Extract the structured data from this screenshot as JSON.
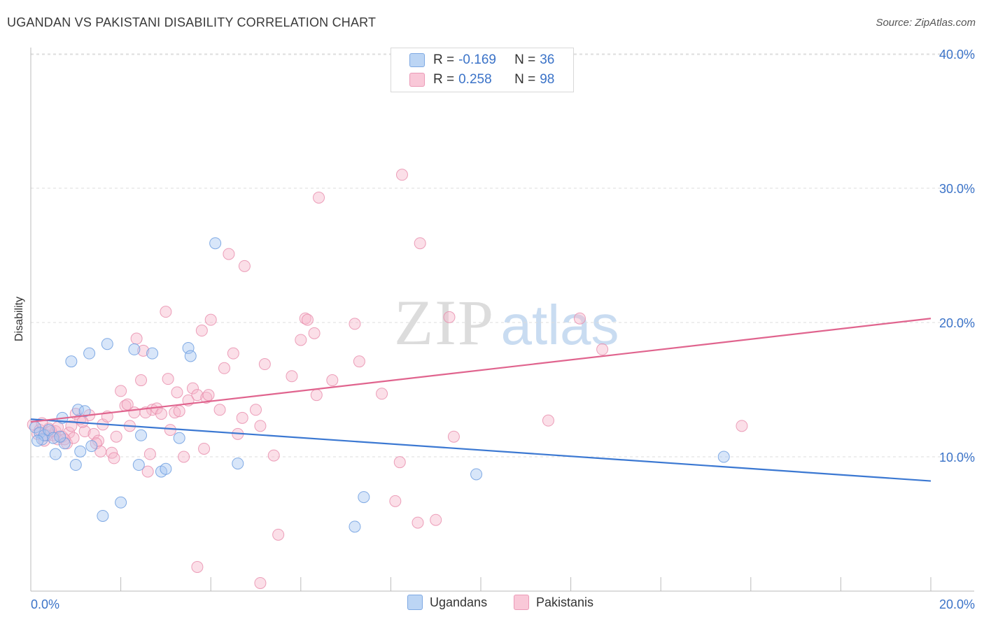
{
  "header": {
    "title": "UGANDAN VS PAKISTANI DISABILITY CORRELATION CHART",
    "source": "Source: ZipAtlas.com"
  },
  "watermark": {
    "zip": "ZIP",
    "atlas": "atlas"
  },
  "legend": {
    "r_label": "R =",
    "n_label": "N =",
    "entries": [
      {
        "name": "Ugandans",
        "r": "-0.169",
        "n": "36",
        "fill": "#a9c8f2",
        "stroke": "#6d9ee0"
      },
      {
        "name": "Pakistanis",
        "r": "0.258",
        "n": "98",
        "fill": "#f7b8cc",
        "stroke": "#e98fae"
      }
    ]
  },
  "chart_data": {
    "type": "scatter",
    "title": "UGANDAN VS PAKISTANI DISABILITY CORRELATION CHART",
    "xlabel": "",
    "ylabel": "Disability",
    "xlim": [
      0,
      20
    ],
    "ylim": [
      0,
      40
    ],
    "x_tick_labels": [
      "0.0%",
      "20.0%"
    ],
    "y_ticks": [
      10,
      20,
      30,
      40
    ],
    "y_tick_labels": [
      "10.0%",
      "20.0%",
      "30.0%",
      "40.0%"
    ],
    "grid": "horizontal-dashed",
    "legend_position": "top-center",
    "series": [
      {
        "name": "Ugandans",
        "color": "#3b78d2",
        "fill": "#a9c8f2",
        "trend": {
          "x": [
            0,
            20
          ],
          "y": [
            12.8,
            8.2
          ]
        },
        "points": [
          [
            0.1,
            12.2
          ],
          [
            0.2,
            11.8
          ],
          [
            0.25,
            11.3
          ],
          [
            0.3,
            11.6
          ],
          [
            0.4,
            12.0
          ],
          [
            0.5,
            11.4
          ],
          [
            0.55,
            10.2
          ],
          [
            0.7,
            12.9
          ],
          [
            0.75,
            11.0
          ],
          [
            0.9,
            17.1
          ],
          [
            1.0,
            9.4
          ],
          [
            1.05,
            13.5
          ],
          [
            1.1,
            10.4
          ],
          [
            1.2,
            13.4
          ],
          [
            1.3,
            17.7
          ],
          [
            1.35,
            10.8
          ],
          [
            1.6,
            5.6
          ],
          [
            1.7,
            18.4
          ],
          [
            2.0,
            6.6
          ],
          [
            2.3,
            18.0
          ],
          [
            2.4,
            9.4
          ],
          [
            2.45,
            11.6
          ],
          [
            2.7,
            17.7
          ],
          [
            2.9,
            8.9
          ],
          [
            3.0,
            9.1
          ],
          [
            3.3,
            11.4
          ],
          [
            3.5,
            18.1
          ],
          [
            3.55,
            17.5
          ],
          [
            4.1,
            25.9
          ],
          [
            4.6,
            9.5
          ],
          [
            7.2,
            4.8
          ],
          [
            7.4,
            7.0
          ],
          [
            9.9,
            8.7
          ],
          [
            15.4,
            10.0
          ],
          [
            0.15,
            11.2
          ],
          [
            0.65,
            11.5
          ]
        ]
      },
      {
        "name": "Pakistanis",
        "color": "#e0648e",
        "fill": "#f7b8cc",
        "trend": {
          "x": [
            0,
            20
          ],
          "y": [
            12.6,
            20.3
          ]
        },
        "points": [
          [
            0.05,
            12.4
          ],
          [
            0.15,
            11.7
          ],
          [
            0.3,
            11.2
          ],
          [
            0.4,
            12.1
          ],
          [
            0.5,
            11.6
          ],
          [
            0.55,
            11.9
          ],
          [
            0.6,
            11.3
          ],
          [
            0.7,
            11.5
          ],
          [
            0.8,
            11.0
          ],
          [
            0.85,
            11.8
          ],
          [
            0.9,
            12.3
          ],
          [
            0.95,
            11.4
          ],
          [
            1.0,
            13.2
          ],
          [
            1.1,
            12.8
          ],
          [
            1.2,
            11.9
          ],
          [
            1.3,
            13.1
          ],
          [
            1.4,
            11.7
          ],
          [
            1.5,
            11.2
          ],
          [
            1.6,
            12.4
          ],
          [
            1.7,
            13.0
          ],
          [
            1.8,
            10.3
          ],
          [
            1.85,
            9.9
          ],
          [
            1.9,
            11.5
          ],
          [
            2.0,
            14.9
          ],
          [
            2.1,
            13.8
          ],
          [
            2.2,
            12.3
          ],
          [
            2.3,
            13.3
          ],
          [
            2.35,
            18.8
          ],
          [
            2.45,
            15.7
          ],
          [
            2.5,
            17.9
          ],
          [
            2.6,
            8.9
          ],
          [
            2.7,
            13.5
          ],
          [
            2.8,
            13.6
          ],
          [
            2.9,
            13.2
          ],
          [
            3.0,
            20.8
          ],
          [
            3.05,
            15.8
          ],
          [
            3.1,
            12.0
          ],
          [
            3.2,
            13.3
          ],
          [
            3.25,
            14.8
          ],
          [
            3.4,
            10.0
          ],
          [
            3.5,
            14.2
          ],
          [
            3.6,
            15.1
          ],
          [
            3.7,
            14.6
          ],
          [
            3.8,
            19.4
          ],
          [
            3.85,
            10.6
          ],
          [
            3.9,
            14.4
          ],
          [
            3.95,
            14.6
          ],
          [
            4.0,
            20.2
          ],
          [
            4.2,
            13.5
          ],
          [
            4.3,
            16.6
          ],
          [
            4.4,
            25.1
          ],
          [
            4.5,
            17.7
          ],
          [
            4.6,
            11.7
          ],
          [
            4.7,
            12.9
          ],
          [
            4.75,
            24.2
          ],
          [
            5.0,
            13.5
          ],
          [
            5.1,
            12.3
          ],
          [
            5.2,
            16.9
          ],
          [
            5.4,
            10.1
          ],
          [
            5.5,
            4.2
          ],
          [
            5.8,
            16.0
          ],
          [
            6.0,
            18.7
          ],
          [
            6.1,
            20.3
          ],
          [
            6.15,
            20.2
          ],
          [
            6.3,
            19.2
          ],
          [
            6.35,
            14.6
          ],
          [
            6.4,
            29.3
          ],
          [
            6.7,
            15.7
          ],
          [
            7.2,
            19.9
          ],
          [
            7.3,
            17.1
          ],
          [
            7.8,
            14.7
          ],
          [
            8.1,
            6.7
          ],
          [
            8.2,
            9.6
          ],
          [
            8.25,
            31.0
          ],
          [
            8.6,
            5.1
          ],
          [
            8.65,
            25.9
          ],
          [
            9.0,
            5.3
          ],
          [
            9.3,
            20.4
          ],
          [
            9.4,
            11.5
          ],
          [
            11.5,
            12.7
          ],
          [
            12.2,
            20.3
          ],
          [
            12.7,
            18.0
          ],
          [
            15.8,
            12.3
          ],
          [
            3.7,
            1.8
          ],
          [
            5.1,
            0.6
          ],
          [
            0.2,
            12.0
          ],
          [
            0.35,
            11.6
          ],
          [
            0.45,
            11.9
          ],
          [
            0.6,
            12.2
          ],
          [
            0.75,
            11.3
          ],
          [
            1.15,
            12.6
          ],
          [
            1.45,
            11.0
          ],
          [
            1.55,
            10.4
          ],
          [
            2.15,
            13.9
          ],
          [
            2.55,
            13.3
          ],
          [
            2.65,
            10.2
          ],
          [
            3.3,
            13.4
          ],
          [
            0.25,
            12.5
          ]
        ]
      }
    ]
  }
}
